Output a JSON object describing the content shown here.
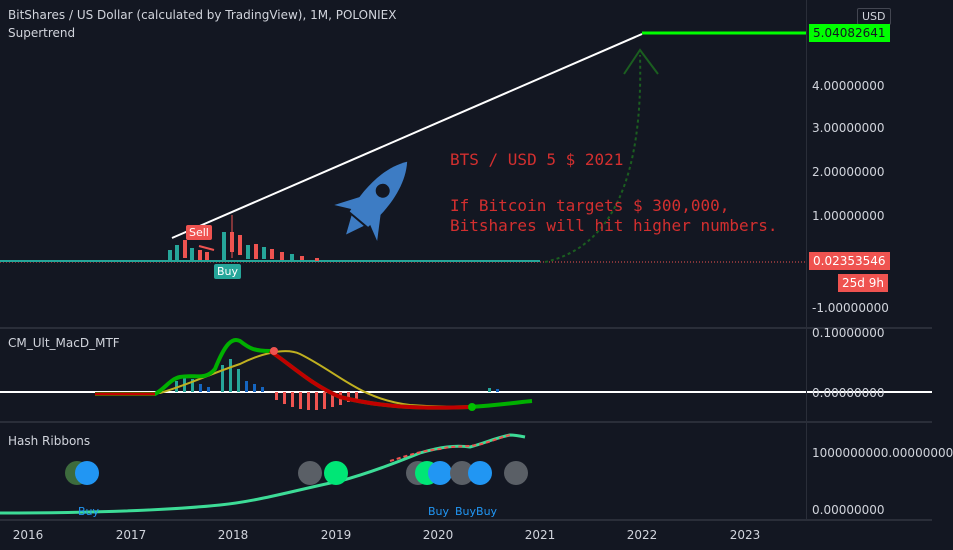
{
  "main": {
    "title": "BitShares / US Dollar (calculated by TradingView), 1M, POLONIEX",
    "indicator": "Supertrend",
    "annotation_line1": "BTS / USD 5 $ 2021",
    "annotation_line2": "If Bitcoin targets $ 300,000,",
    "annotation_line3": "Bitshares will hit higher numbers.",
    "sell_label": "Sell",
    "buy_label": "Buy",
    "currency": "USD",
    "price_ticks": [
      "4.00000000",
      "3.00000000",
      "2.00000000",
      "1.00000000",
      "-1.00000000"
    ],
    "target_price": "5.04082641",
    "last_price": "0.02353546",
    "countdown": "25d 9h"
  },
  "macd": {
    "title": "CM_Ult_MacD_MTF",
    "ticks": [
      "0.10000000",
      "0.00000000"
    ]
  },
  "hash": {
    "title": "Hash Ribbons",
    "ticks": [
      "1000000000.00000000",
      "0.00000000"
    ],
    "buy_labels": [
      "Buy",
      "Buy",
      "BuyBuy"
    ]
  },
  "time_axis": [
    "2016",
    "2017",
    "2018",
    "2019",
    "2020",
    "2021",
    "2022",
    "2023"
  ],
  "colors": {
    "background": "#131722",
    "up": "#26a69a",
    "down": "#ef5350",
    "annotation": "#d32f2f",
    "target_line": "#00ff00",
    "trend_line": "#ffffff",
    "rocket": "#3d7cc4"
  }
}
